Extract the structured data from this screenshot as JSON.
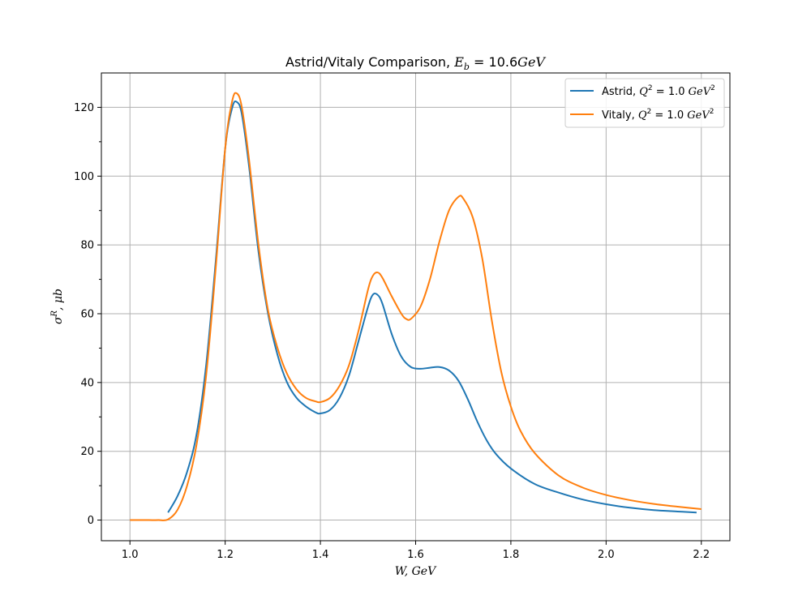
{
  "chart_data": {
    "type": "line",
    "title": "Astrid/Vitaly Comparison, E_b = 10.6GeV",
    "xlabel": "W, GeV",
    "ylabel": "σ^R, μb",
    "xlim": [
      0.94,
      2.26
    ],
    "ylim": [
      -6,
      130
    ],
    "xticks": [
      1.0,
      1.2,
      1.4,
      1.6,
      1.8,
      2.0,
      2.2
    ],
    "yticks": [
      0,
      20,
      40,
      60,
      80,
      100,
      120
    ],
    "grid": true,
    "legend_position": "top-right",
    "series": [
      {
        "name": "Astrid, Q²=1.0 GeV²",
        "color": "#1f77b4",
        "points": [
          [
            1.08,
            2.2
          ],
          [
            1.1,
            7
          ],
          [
            1.12,
            14
          ],
          [
            1.14,
            25
          ],
          [
            1.16,
            45
          ],
          [
            1.18,
            75
          ],
          [
            1.2,
            108
          ],
          [
            1.215,
            120
          ],
          [
            1.225,
            121.5
          ],
          [
            1.235,
            118
          ],
          [
            1.25,
            103
          ],
          [
            1.27,
            78
          ],
          [
            1.29,
            60
          ],
          [
            1.31,
            48
          ],
          [
            1.33,
            40
          ],
          [
            1.35,
            35.5
          ],
          [
            1.37,
            33
          ],
          [
            1.39,
            31.3
          ],
          [
            1.4,
            31
          ],
          [
            1.42,
            32
          ],
          [
            1.44,
            35.5
          ],
          [
            1.46,
            42
          ],
          [
            1.48,
            52
          ],
          [
            1.5,
            62
          ],
          [
            1.51,
            65.5
          ],
          [
            1.52,
            65.5
          ],
          [
            1.53,
            63
          ],
          [
            1.55,
            54
          ],
          [
            1.57,
            47.5
          ],
          [
            1.59,
            44.5
          ],
          [
            1.61,
            44
          ],
          [
            1.63,
            44.3
          ],
          [
            1.65,
            44.5
          ],
          [
            1.67,
            43.5
          ],
          [
            1.69,
            40.5
          ],
          [
            1.71,
            35
          ],
          [
            1.73,
            28.5
          ],
          [
            1.75,
            23
          ],
          [
            1.77,
            19
          ],
          [
            1.8,
            15
          ],
          [
            1.85,
            10.5
          ],
          [
            1.9,
            8
          ],
          [
            1.95,
            6
          ],
          [
            2.0,
            4.6
          ],
          [
            2.05,
            3.6
          ],
          [
            2.1,
            2.9
          ],
          [
            2.15,
            2.5
          ],
          [
            2.19,
            2.2
          ]
        ]
      },
      {
        "name": "Vitaly, Q²=1.0 GeV²",
        "color": "#ff7f0e",
        "points": [
          [
            1.0,
            0
          ],
          [
            1.02,
            0
          ],
          [
            1.04,
            0
          ],
          [
            1.06,
            0
          ],
          [
            1.08,
            0.2
          ],
          [
            1.1,
            3
          ],
          [
            1.12,
            10
          ],
          [
            1.14,
            22
          ],
          [
            1.16,
            42
          ],
          [
            1.18,
            73
          ],
          [
            1.2,
            108
          ],
          [
            1.215,
            122
          ],
          [
            1.225,
            124
          ],
          [
            1.235,
            120
          ],
          [
            1.25,
            105
          ],
          [
            1.27,
            80
          ],
          [
            1.29,
            61
          ],
          [
            1.31,
            50
          ],
          [
            1.33,
            42.5
          ],
          [
            1.35,
            38
          ],
          [
            1.37,
            35.5
          ],
          [
            1.39,
            34.5
          ],
          [
            1.4,
            34.3
          ],
          [
            1.42,
            35.5
          ],
          [
            1.44,
            39
          ],
          [
            1.46,
            45
          ],
          [
            1.48,
            55
          ],
          [
            1.5,
            67
          ],
          [
            1.51,
            71
          ],
          [
            1.52,
            72
          ],
          [
            1.53,
            70.5
          ],
          [
            1.55,
            65
          ],
          [
            1.57,
            60
          ],
          [
            1.58,
            58.5
          ],
          [
            1.59,
            58.5
          ],
          [
            1.61,
            62
          ],
          [
            1.63,
            70
          ],
          [
            1.65,
            81
          ],
          [
            1.67,
            90
          ],
          [
            1.69,
            94
          ],
          [
            1.7,
            93.5
          ],
          [
            1.72,
            88
          ],
          [
            1.74,
            76
          ],
          [
            1.76,
            58
          ],
          [
            1.78,
            43
          ],
          [
            1.8,
            33
          ],
          [
            1.82,
            26
          ],
          [
            1.85,
            19.5
          ],
          [
            1.9,
            13
          ],
          [
            1.95,
            9.5
          ],
          [
            2.0,
            7.3
          ],
          [
            2.05,
            5.8
          ],
          [
            2.1,
            4.7
          ],
          [
            2.15,
            3.9
          ],
          [
            2.2,
            3.2
          ]
        ]
      }
    ]
  }
}
